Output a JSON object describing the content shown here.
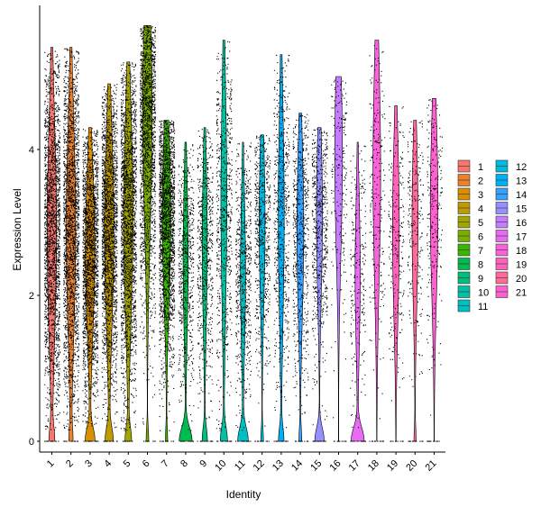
{
  "chart_data": {
    "type": "violin",
    "title": "",
    "xlabel": "Identity",
    "ylabel": "Expression Level",
    "ylim": [
      -0.2,
      5.95
    ],
    "yticks": [
      0,
      2,
      4
    ],
    "categories": [
      "1",
      "2",
      "3",
      "4",
      "5",
      "6",
      "7",
      "8",
      "9",
      "10",
      "11",
      "12",
      "13",
      "14",
      "15",
      "16",
      "17",
      "18",
      "19",
      "20",
      "21"
    ],
    "colors": [
      "#F8766D",
      "#EA8331",
      "#D89000",
      "#C09B00",
      "#A3A500",
      "#7CAE00",
      "#39B600",
      "#00BB4E",
      "#00BF7D",
      "#00C1A3",
      "#00BFC4",
      "#00BAE0",
      "#00B0F6",
      "#35A2FF",
      "#9590FF",
      "#C77CFF",
      "#E76BF3",
      "#FA62DB",
      "#FF62BC",
      "#FF6A98",
      "#FD61D1"
    ],
    "violins": [
      {
        "identity": "1",
        "max": 5.4,
        "upper_median": 2.9,
        "has_zero_bulge": true,
        "zero_width": 0.28,
        "upper_width": 0.55
      },
      {
        "identity": "2",
        "max": 5.4,
        "upper_median": 2.9,
        "has_zero_bulge": true,
        "zero_width": 0.18,
        "upper_width": 0.55
      },
      {
        "identity": "3",
        "max": 4.3,
        "upper_median": 2.6,
        "has_zero_bulge": true,
        "zero_width": 0.55,
        "upper_width": 0.55
      },
      {
        "identity": "4",
        "max": 4.9,
        "upper_median": 2.9,
        "has_zero_bulge": true,
        "zero_width": 0.45,
        "upper_width": 0.55
      },
      {
        "identity": "5",
        "max": 5.2,
        "upper_median": 3.1,
        "has_zero_bulge": true,
        "zero_width": 0.35,
        "upper_width": 0.55
      },
      {
        "identity": "6",
        "max": 5.7,
        "upper_median": 4.5,
        "has_zero_bulge": true,
        "zero_width": 0.15,
        "upper_width": 0.55
      },
      {
        "identity": "7",
        "max": 4.4,
        "upper_median": 3.1,
        "has_zero_bulge": true,
        "zero_width": 0.12,
        "upper_width": 0.5
      },
      {
        "identity": "8",
        "max": 4.1,
        "upper_median": 2.5,
        "has_zero_bulge": true,
        "zero_width": 0.75,
        "upper_width": 0.3
      },
      {
        "identity": "9",
        "max": 4.3,
        "upper_median": 2.7,
        "has_zero_bulge": true,
        "zero_width": 0.3,
        "upper_width": 0.3
      },
      {
        "identity": "10",
        "max": 5.5,
        "upper_median": 3.3,
        "has_zero_bulge": true,
        "zero_width": 0.4,
        "upper_width": 0.35
      },
      {
        "identity": "11",
        "max": 4.1,
        "upper_median": 2.3,
        "has_zero_bulge": true,
        "zero_width": 0.6,
        "upper_width": 0.3
      },
      {
        "identity": "12",
        "max": 4.2,
        "upper_median": 3.0,
        "has_zero_bulge": true,
        "zero_width": 0.15,
        "upper_width": 0.35
      },
      {
        "identity": "13",
        "max": 5.3,
        "upper_median": 3.1,
        "has_zero_bulge": true,
        "zero_width": 0.3,
        "upper_width": 0.35
      },
      {
        "identity": "14",
        "max": 4.5,
        "upper_median": 2.9,
        "has_zero_bulge": true,
        "zero_width": 0.15,
        "upper_width": 0.4
      },
      {
        "identity": "15",
        "max": 4.3,
        "upper_median": 3.1,
        "has_zero_bulge": true,
        "zero_width": 0.55,
        "upper_width": 0.35
      },
      {
        "identity": "16",
        "max": 5.0,
        "upper_median": 3.9,
        "has_zero_bulge": false,
        "zero_width": 0.0,
        "upper_width": 0.45
      },
      {
        "identity": "17",
        "max": 4.1,
        "upper_median": 2.3,
        "has_zero_bulge": true,
        "zero_width": 0.75,
        "upper_width": 0.3
      },
      {
        "identity": "18",
        "max": 5.5,
        "upper_median": 3.7,
        "has_zero_bulge": false,
        "zero_width": 0.0,
        "upper_width": 0.45
      },
      {
        "identity": "19",
        "max": 4.6,
        "upper_median": 2.9,
        "has_zero_bulge": false,
        "zero_width": 0.0,
        "upper_width": 0.4
      },
      {
        "identity": "20",
        "max": 4.4,
        "upper_median": 3.0,
        "has_zero_bulge": true,
        "zero_width": 0.12,
        "upper_width": 0.35
      },
      {
        "identity": "21",
        "max": 4.7,
        "upper_median": 3.2,
        "has_zero_bulge": false,
        "zero_width": 0.0,
        "upper_width": 0.45
      }
    ],
    "legend": {
      "position": "right",
      "columns": [
        [
          "1",
          "2",
          "3",
          "4",
          "5",
          "6",
          "7",
          "8",
          "9",
          "10",
          "11"
        ],
        [
          "12",
          "13",
          "14",
          "15",
          "16",
          "17",
          "18",
          "19",
          "20",
          "21"
        ]
      ]
    },
    "grid": false
  }
}
